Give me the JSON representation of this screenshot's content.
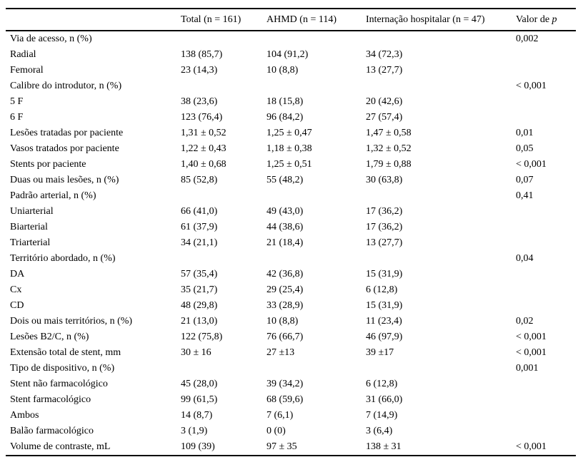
{
  "table": {
    "columns": {
      "label": "",
      "total": "Total (n = 161)",
      "ahmd": "AHMD (n = 114)",
      "internacao": "Internação hospitalar (n = 47)"
    },
    "p_header": {
      "prefix": "Valor de",
      "italic": "p"
    },
    "rows": [
      {
        "label": "Via de acesso, n (%)",
        "total": "",
        "ahmd": "",
        "internacao": "",
        "p": "0,002"
      },
      {
        "label": "Radial",
        "total": "138 (85,7)",
        "ahmd": "104 (91,2)",
        "internacao": "34 (72,3)",
        "p": ""
      },
      {
        "label": "Femoral",
        "total": "23 (14,3)",
        "ahmd": "10 (8,8)",
        "internacao": "13 (27,7)",
        "p": ""
      },
      {
        "label": "Calibre do introdutor, n (%)",
        "total": "",
        "ahmd": "",
        "internacao": "",
        "p": "< 0,001"
      },
      {
        "label": "5 F",
        "total": "38 (23,6)",
        "ahmd": "18 (15,8)",
        "internacao": "20 (42,6)",
        "p": ""
      },
      {
        "label": "6 F",
        "total": "123 (76,4)",
        "ahmd": "96 (84,2)",
        "internacao": "27 (57,4)",
        "p": ""
      },
      {
        "label": "Lesões tratadas por paciente",
        "total": "1,31 ± 0,52",
        "ahmd": "1,25 ± 0,47",
        "internacao": "1,47 ± 0,58",
        "p": "0,01"
      },
      {
        "label": "Vasos tratados por paciente",
        "total": "1,22 ± 0,43",
        "ahmd": "1,18 ± 0,38",
        "internacao": "1,32 ± 0,52",
        "p": "0,05"
      },
      {
        "label": "Stents por paciente",
        "total": "1,40 ± 0,68",
        "ahmd": "1,25 ± 0,51",
        "internacao": "1,79 ± 0,88",
        "p": "< 0,001"
      },
      {
        "label": "Duas ou mais lesões, n (%)",
        "total": "85 (52,8)",
        "ahmd": "55 (48,2)",
        "internacao": "30 (63,8)",
        "p": "0,07"
      },
      {
        "label": "Padrão arterial, n (%)",
        "total": "",
        "ahmd": "",
        "internacao": "",
        "p": "0,41"
      },
      {
        "label": "Uniarterial",
        "total": "66 (41,0)",
        "ahmd": "49 (43,0)",
        "internacao": "17 (36,2)",
        "p": ""
      },
      {
        "label": "Biarterial",
        "total": "61 (37,9)",
        "ahmd": "44 (38,6)",
        "internacao": "17 (36,2)",
        "p": ""
      },
      {
        "label": "Triarterial",
        "total": "34 (21,1)",
        "ahmd": "21 (18,4)",
        "internacao": "13 (27,7)",
        "p": ""
      },
      {
        "label": "Território abordado, n (%)",
        "total": "",
        "ahmd": "",
        "internacao": "",
        "p": "0,04"
      },
      {
        "label": "DA",
        "total": "57 (35,4)",
        "ahmd": "42 (36,8)",
        "internacao": "15 (31,9)",
        "p": ""
      },
      {
        "label": "Cx",
        "total": "35 (21,7)",
        "ahmd": "29 (25,4)",
        "internacao": "6 (12,8)",
        "p": ""
      },
      {
        "label": "CD",
        "total": "48 (29,8)",
        "ahmd": "33 (28,9)",
        "internacao": "15 (31,9)",
        "p": ""
      },
      {
        "label": "Dois ou mais territórios, n (%)",
        "total": "21 (13,0)",
        "ahmd": "10 (8,8)",
        "internacao": "11 (23,4)",
        "p": "0,02"
      },
      {
        "label": "Lesões B2/C, n (%)",
        "total": "122 (75,8)",
        "ahmd": "76 (66,7)",
        "internacao": "46 (97,9)",
        "p": "< 0,001"
      },
      {
        "label": "Extensão total de stent, mm",
        "total": "30 ± 16",
        "ahmd": "27 ±13",
        "internacao": "39 ±17",
        "p": "< 0,001"
      },
      {
        "label": "Tipo de dispositivo, n (%)",
        "total": "",
        "ahmd": "",
        "internacao": "",
        "p": "0,001"
      },
      {
        "label": "Stent não farmacológico",
        "total": "45 (28,0)",
        "ahmd": "39 (34,2)",
        "internacao": "6 (12,8)",
        "p": ""
      },
      {
        "label": "Stent farmacológico",
        "total": "99 (61,5)",
        "ahmd": "68 (59,6)",
        "internacao": "31 (66,0)",
        "p": ""
      },
      {
        "label": "Ambos",
        "total": "14 (8,7)",
        "ahmd": "7 (6,1)",
        "internacao": "7 (14,9)",
        "p": ""
      },
      {
        "label": "Balão farmacológico",
        "total": "3 (1,9)",
        "ahmd": "0 (0)",
        "internacao": "3 (6,4)",
        "p": ""
      },
      {
        "label": "Volume de contraste, mL",
        "total": "109 (39)",
        "ahmd": "97 ± 35",
        "internacao": "138 ± 31",
        "p": "< 0,001"
      }
    ]
  }
}
